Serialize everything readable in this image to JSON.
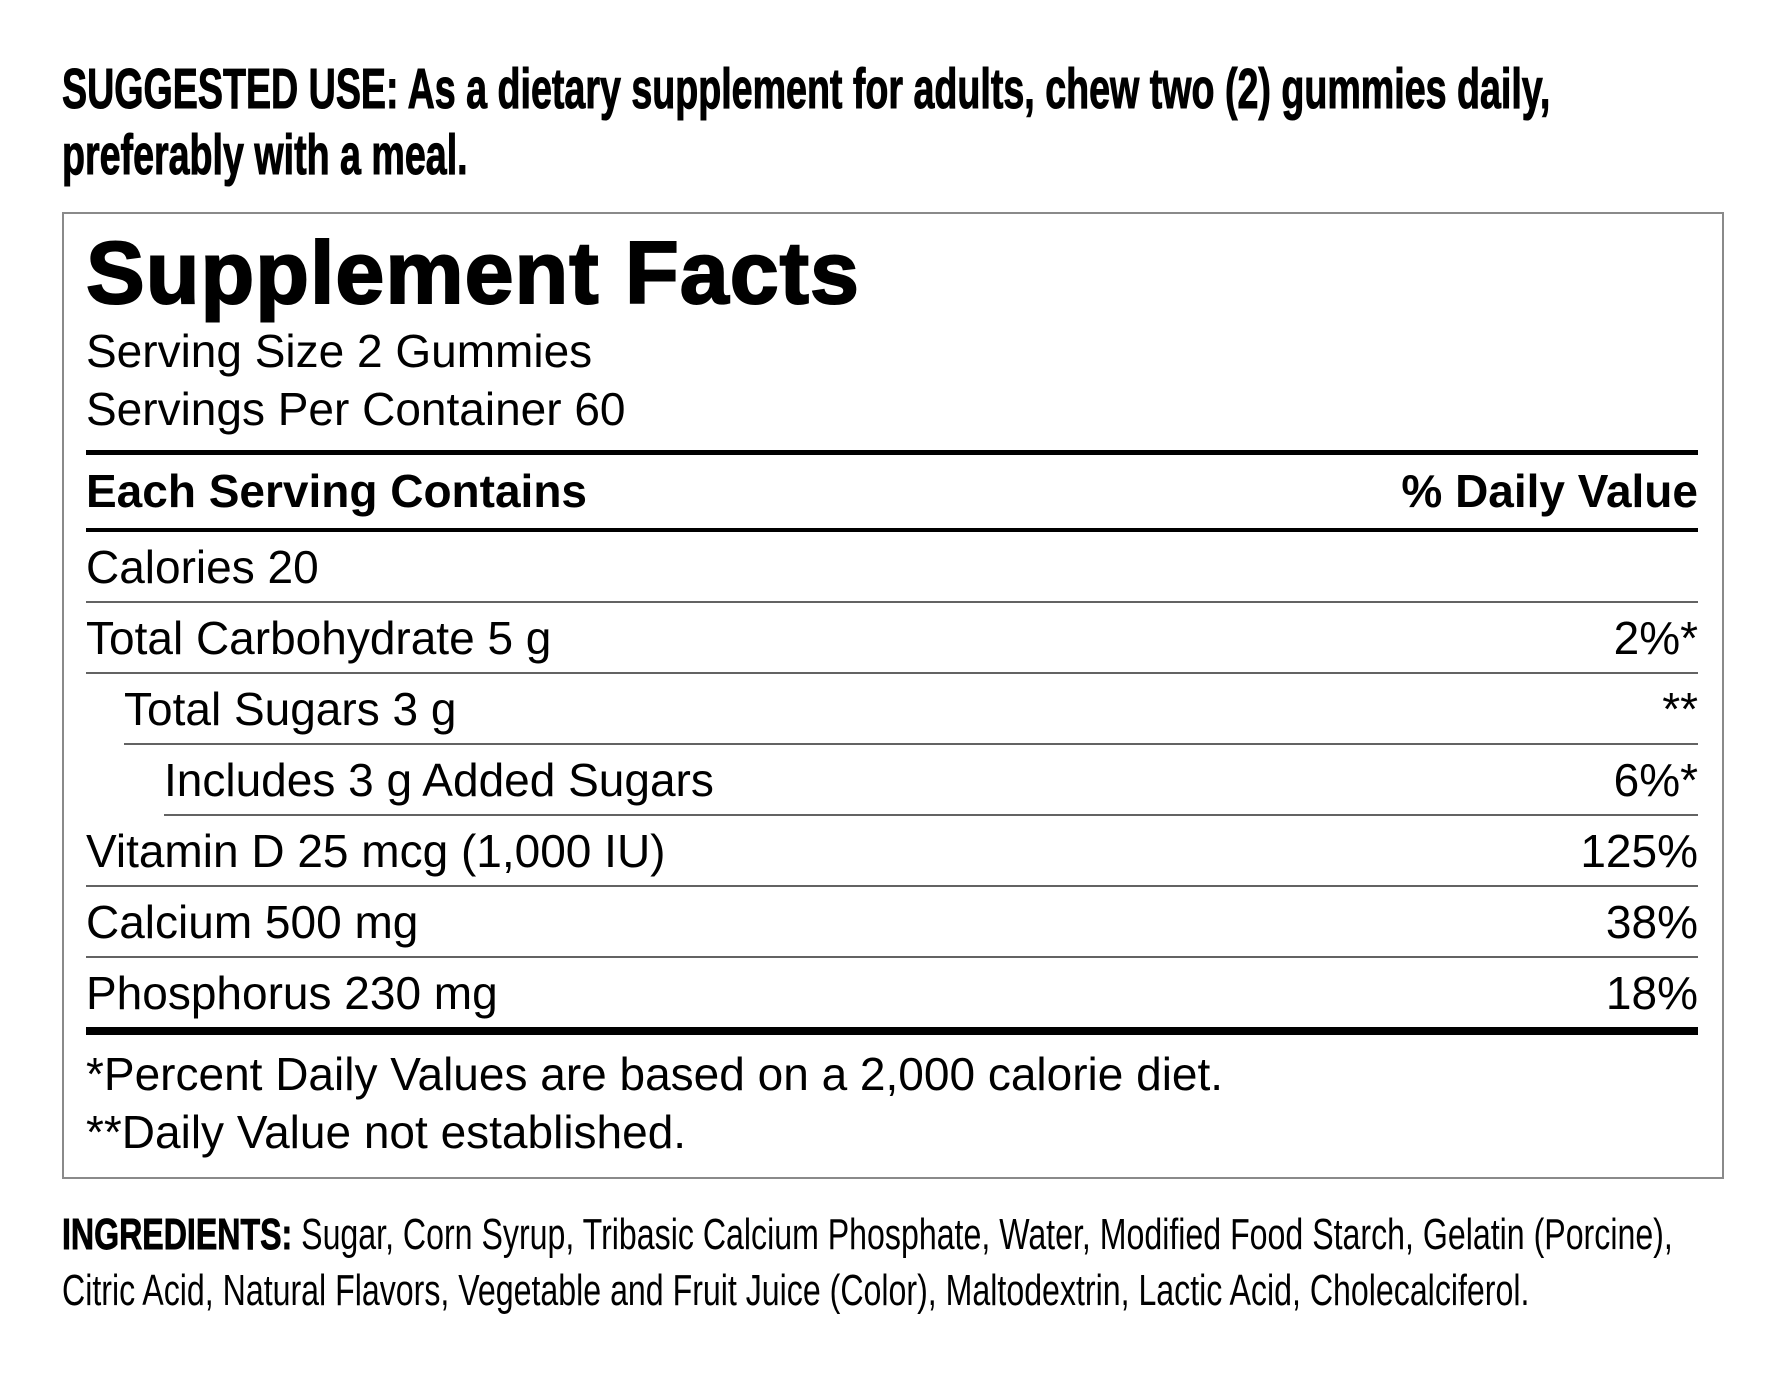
{
  "colors": {
    "text": "#000000",
    "panel_border": "#8a8a8a",
    "row_hairline": "#636363",
    "heavy_rule": "#000000",
    "background": "#ffffff"
  },
  "suggested_use": {
    "line1": "SUGGESTED USE: As a dietary supplement for adults, chew two (2) gummies daily,",
    "line2": "preferably with a meal."
  },
  "panel": {
    "title": "Supplement Facts",
    "serving_size": "Serving Size 2 Gummies",
    "servings_per_container": "Servings Per Container 60",
    "columns": {
      "left": "Each Serving Contains",
      "right": "% Daily Value"
    },
    "rows": [
      {
        "label": "Calories 20",
        "value": "",
        "indent": 0
      },
      {
        "label": "Total Carbohydrate 5 g",
        "value": "2%*",
        "indent": 0
      },
      {
        "label": "Total Sugars 3 g",
        "value": "**",
        "indent": 1
      },
      {
        "label": "Includes 3 g Added Sugars",
        "value": "6%*",
        "indent": 2
      },
      {
        "label": "Vitamin D 25 mcg (1,000 IU)",
        "value": "125%",
        "indent": 0
      },
      {
        "label": "Calcium 500 mg",
        "value": "38%",
        "indent": 0
      },
      {
        "label": "Phosphorus 230 mg",
        "value": "18%",
        "indent": 0
      }
    ],
    "footnotes": [
      "*Percent Daily Values are based on a 2,000 calorie diet.",
      "**Daily Value not established."
    ]
  },
  "ingredients": {
    "label": "INGREDIENTS:",
    "line1": "Sugar, Corn Syrup, Tribasic Calcium Phosphate, Water, Modified Food Starch, Gelatin (Porcine),",
    "line2": "Citric Acid, Natural Flavors, Vegetable and Fruit Juice (Color), Maltodextrin, Lactic Acid, Cholecalciferol."
  }
}
